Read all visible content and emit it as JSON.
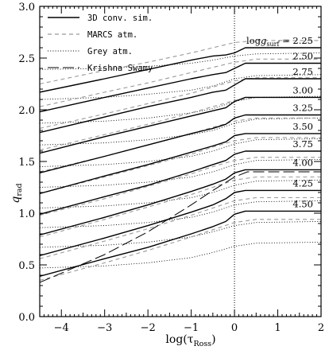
{
  "chart_data": {
    "type": "line",
    "title": "",
    "xlabel": "log(τ",
    "xlabel_sub": "Ross",
    "xlabel_close": ")",
    "ylabel": "q",
    "ylabel_sub": "rad",
    "xlim": [
      -4.5,
      2.0
    ],
    "ylim": [
      0.0,
      3.0
    ],
    "x_ticks": [
      -4,
      -3,
      -2,
      -1,
      0,
      1,
      2
    ],
    "y_ticks": [
      0.0,
      0.5,
      1.0,
      1.5,
      2.0,
      2.5,
      3.0
    ],
    "x_tick_labels": [
      "−4",
      "−3",
      "−2",
      "−1",
      "0",
      "1",
      "2"
    ],
    "y_tick_labels": [
      "0.0",
      "0.5",
      "1.0",
      "1.5",
      "2.0",
      "2.5",
      "3.0"
    ],
    "vline_x": 0,
    "grid": false,
    "legend_position": "top-left",
    "legend": [
      {
        "label": "3D conv. sim.",
        "style": "solid"
      },
      {
        "label": "MARCS atm.",
        "style": "dashed"
      },
      {
        "label": "Grey atm.",
        "style": "dotted"
      },
      {
        "label": "Krishna Swamy",
        "style": "longdash"
      }
    ],
    "logg_prefix": "log",
    "logg_var": "g",
    "logg_sub": "surf",
    "logg_eq": " = ",
    "logg_values": [
      "2.25",
      "2.50",
      "2.75",
      "3.00",
      "3.25",
      "3.50",
      "3.75",
      "4.00",
      "4.25",
      "4.50"
    ],
    "colors": {
      "sim": "#000000",
      "marcs": "#999999",
      "grey": "#000000",
      "ks": "#000000"
    },
    "sim_series": [
      {
        "x": [
          -4.5,
          -3.0,
          -2.0,
          -1.0,
          -0.5,
          -0.2,
          0.0,
          0.25,
          0.5,
          2.0
        ],
        "y": [
          2.17,
          2.3,
          2.39,
          2.48,
          2.52,
          2.53,
          2.55,
          2.6,
          2.6,
          2.6
        ]
      },
      {
        "x": [
          -4.5,
          -3.0,
          -2.0,
          -1.0,
          -0.5,
          -0.2,
          0.0,
          0.25,
          0.5,
          2.0
        ],
        "y": [
          1.98,
          2.12,
          2.21,
          2.3,
          2.34,
          2.36,
          2.4,
          2.45,
          2.45,
          2.45
        ]
      },
      {
        "x": [
          -4.5,
          -3.0,
          -2.0,
          -1.0,
          -0.5,
          -0.2,
          0.0,
          0.25,
          0.5,
          2.0
        ],
        "y": [
          1.78,
          1.93,
          2.03,
          2.12,
          2.17,
          2.19,
          2.24,
          2.3,
          2.3,
          2.3
        ]
      },
      {
        "x": [
          -4.5,
          -3.0,
          -2.0,
          -1.0,
          -0.5,
          -0.2,
          0.0,
          0.25,
          0.5,
          2.0
        ],
        "y": [
          1.58,
          1.74,
          1.84,
          1.94,
          1.99,
          2.02,
          2.08,
          2.12,
          2.12,
          2.12
        ]
      },
      {
        "x": [
          -4.5,
          -3.0,
          -2.0,
          -1.0,
          -0.5,
          -0.2,
          0.0,
          0.25,
          0.5,
          2.0
        ],
        "y": [
          1.39,
          1.55,
          1.66,
          1.77,
          1.82,
          1.86,
          1.92,
          1.95,
          1.95,
          1.95
        ]
      },
      {
        "x": [
          -4.5,
          -3.0,
          -2.0,
          -1.0,
          -0.5,
          -0.2,
          0.0,
          0.25,
          0.5,
          2.0
        ],
        "y": [
          1.19,
          1.36,
          1.47,
          1.59,
          1.65,
          1.69,
          1.75,
          1.77,
          1.77,
          1.77
        ]
      },
      {
        "x": [
          -4.5,
          -3.0,
          -2.0,
          -1.0,
          -0.5,
          -0.2,
          0.0,
          0.25,
          0.5,
          2.0
        ],
        "y": [
          0.99,
          1.16,
          1.27,
          1.4,
          1.47,
          1.51,
          1.57,
          1.6,
          1.6,
          1.6
        ]
      },
      {
        "x": [
          -4.5,
          -3.0,
          -2.0,
          -1.0,
          -0.5,
          -0.2,
          0.0,
          0.25,
          0.5,
          2.0
        ],
        "y": [
          0.79,
          0.96,
          1.08,
          1.21,
          1.28,
          1.33,
          1.39,
          1.42,
          1.42,
          1.42
        ]
      },
      {
        "x": [
          -4.5,
          -3.0,
          -2.0,
          -1.0,
          -0.5,
          -0.2,
          0.0,
          0.25,
          0.5,
          2.0
        ],
        "y": [
          0.59,
          0.76,
          0.88,
          1.01,
          1.08,
          1.14,
          1.2,
          1.22,
          1.22,
          1.22
        ]
      },
      {
        "x": [
          -4.5,
          -3.0,
          -2.0,
          -1.0,
          -0.5,
          -0.2,
          0.0,
          0.25,
          0.5,
          2.0
        ],
        "y": [
          0.39,
          0.56,
          0.67,
          0.8,
          0.87,
          0.92,
          0.99,
          1.02,
          1.02,
          1.02
        ]
      }
    ],
    "marcs_offset": [
      0.0,
      -0.12,
      0.0,
      0.08,
      0.09,
      0.09,
      0.09,
      0.09,
      0.08,
      0.08
    ],
    "marcs_series": [
      {
        "x": [
          -4.5,
          -3.0,
          -2.0,
          -1.0,
          -0.5,
          0.0,
          0.5,
          2.0
        ],
        "y": [
          2.25,
          2.38,
          2.46,
          2.55,
          2.6,
          2.65,
          2.67,
          2.67
        ]
      },
      {
        "x": [
          -4.5,
          -3.0,
          -2.0,
          -1.0,
          -0.5,
          0.0,
          0.5,
          2.0
        ],
        "y": [
          2.03,
          2.17,
          2.26,
          2.36,
          2.41,
          2.46,
          2.49,
          2.49
        ]
      },
      {
        "x": [
          -4.5,
          -3.0,
          -2.0,
          -1.0,
          -0.5,
          0.0,
          0.5,
          2.0
        ],
        "y": [
          1.82,
          1.96,
          2.06,
          2.16,
          2.22,
          2.28,
          2.31,
          2.31
        ]
      },
      {
        "x": [
          -4.5,
          -3.0,
          -2.0,
          -1.0,
          -0.5,
          0.0,
          0.5,
          2.0
        ],
        "y": [
          1.61,
          1.76,
          1.86,
          1.97,
          2.03,
          2.09,
          2.12,
          2.12
        ]
      },
      {
        "x": [
          -4.5,
          -3.0,
          -2.0,
          -1.0,
          -0.5,
          0.0,
          0.5,
          2.0
        ],
        "y": [
          1.4,
          1.55,
          1.66,
          1.77,
          1.83,
          1.89,
          1.92,
          1.92
        ]
      },
      {
        "x": [
          -4.5,
          -3.0,
          -2.0,
          -1.0,
          -0.5,
          0.0,
          0.5,
          2.0
        ],
        "y": [
          1.19,
          1.35,
          1.46,
          1.57,
          1.64,
          1.7,
          1.73,
          1.73
        ]
      },
      {
        "x": [
          -4.5,
          -3.0,
          -2.0,
          -1.0,
          -0.5,
          0.0,
          0.5,
          2.0
        ],
        "y": [
          0.98,
          1.14,
          1.26,
          1.38,
          1.45,
          1.51,
          1.54,
          1.54
        ]
      },
      {
        "x": [
          -4.5,
          -3.0,
          -2.0,
          -1.0,
          -0.5,
          0.0,
          0.5,
          2.0
        ],
        "y": [
          0.77,
          0.94,
          1.06,
          1.18,
          1.25,
          1.32,
          1.35,
          1.35
        ]
      },
      {
        "x": [
          -4.5,
          -3.0,
          -2.0,
          -1.0,
          -0.5,
          0.0,
          0.5,
          2.0
        ],
        "y": [
          0.56,
          0.73,
          0.85,
          0.98,
          1.05,
          1.12,
          1.15,
          1.15
        ]
      },
      {
        "x": [
          -4.5,
          -3.0,
          -2.0,
          -1.0,
          -0.5,
          0.0,
          0.5,
          2.0
        ],
        "y": [
          0.35,
          0.52,
          0.64,
          0.77,
          0.84,
          0.91,
          0.94,
          0.94
        ]
      }
    ],
    "grey_series": [
      {
        "x": [
          -4.5,
          -3.0,
          -2.0,
          -1.0,
          -0.5,
          0.0,
          0.5,
          2.0
        ],
        "y": [
          2.39,
          2.4,
          2.42,
          2.45,
          2.48,
          2.52,
          2.54,
          2.55
        ]
      },
      {
        "x": [
          -4.5,
          -3.0,
          -2.0,
          -1.0,
          -0.5,
          0.0,
          0.5,
          2.0
        ],
        "y": [
          2.1,
          2.12,
          2.15,
          2.19,
          2.23,
          2.3,
          2.33,
          2.34
        ]
      },
      {
        "x": [
          -4.5,
          -3.0,
          -2.0,
          -1.0,
          -0.5,
          0.0,
          0.5,
          2.0
        ],
        "y": [
          1.87,
          1.89,
          1.92,
          1.97,
          2.01,
          2.08,
          2.12,
          2.13
        ]
      },
      {
        "x": [
          -4.5,
          -3.0,
          -2.0,
          -1.0,
          -0.5,
          0.0,
          0.5,
          2.0
        ],
        "y": [
          1.66,
          1.68,
          1.71,
          1.76,
          1.8,
          1.87,
          1.91,
          1.92
        ]
      },
      {
        "x": [
          -4.5,
          -3.0,
          -2.0,
          -1.0,
          -0.5,
          0.0,
          0.5,
          2.0
        ],
        "y": [
          1.45,
          1.47,
          1.5,
          1.55,
          1.6,
          1.67,
          1.71,
          1.72
        ]
      },
      {
        "x": [
          -4.5,
          -3.0,
          -2.0,
          -1.0,
          -0.5,
          0.0,
          0.5,
          2.0
        ],
        "y": [
          1.25,
          1.27,
          1.3,
          1.35,
          1.4,
          1.47,
          1.51,
          1.52
        ]
      },
      {
        "x": [
          -4.5,
          -3.0,
          -2.0,
          -1.0,
          -0.5,
          0.0,
          0.5,
          2.0
        ],
        "y": [
          1.05,
          1.07,
          1.1,
          1.15,
          1.2,
          1.27,
          1.31,
          1.32
        ]
      },
      {
        "x": [
          -4.5,
          -3.0,
          -2.0,
          -1.0,
          -0.5,
          0.0,
          0.5,
          2.0
        ],
        "y": [
          0.86,
          0.88,
          0.91,
          0.96,
          1.01,
          1.08,
          1.11,
          1.12
        ]
      },
      {
        "x": [
          -4.5,
          -3.0,
          -2.0,
          -1.0,
          -0.5,
          0.0,
          0.5,
          2.0
        ],
        "y": [
          0.67,
          0.69,
          0.72,
          0.77,
          0.82,
          0.88,
          0.91,
          0.92
        ]
      },
      {
        "x": [
          -4.5,
          -3.0,
          -2.0,
          -1.0,
          -0.5,
          0.0,
          0.5,
          2.0
        ],
        "y": [
          0.47,
          0.49,
          0.52,
          0.57,
          0.62,
          0.68,
          0.71,
          0.72
        ]
      }
    ],
    "krishna_swamy": {
      "x": [
        -4.5,
        -4.0,
        -3.5,
        -3.0,
        -2.5,
        -2.0,
        -1.5,
        -1.0,
        -0.5,
        0.0,
        0.3,
        0.6,
        2.0
      ],
      "y": [
        0.33,
        0.42,
        0.51,
        0.6,
        0.71,
        0.82,
        0.95,
        1.08,
        1.22,
        1.35,
        1.4,
        1.4,
        1.4
      ]
    }
  }
}
